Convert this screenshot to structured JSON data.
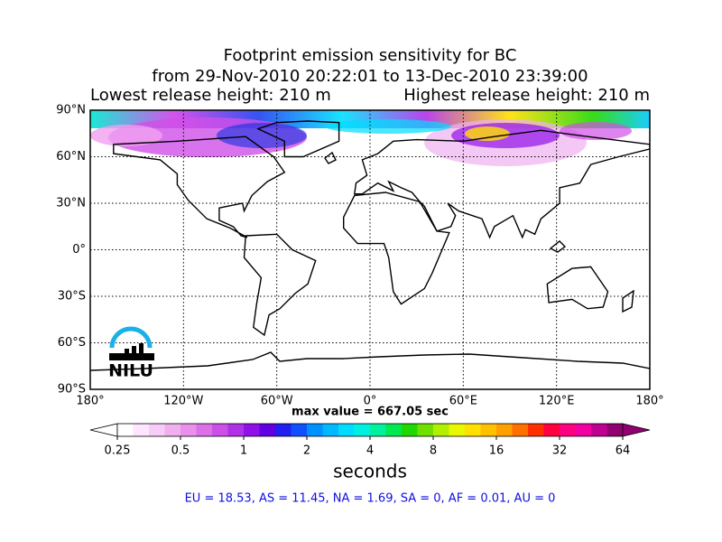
{
  "title": {
    "line1": "Footprint emission sensitivity for BC",
    "line2": "from 29-Nov-2010 20:22:01 to 13-Dec-2010 23:39:00",
    "lowest": "Lowest release height: 210 m",
    "highest": "Highest release height: 210 m"
  },
  "map": {
    "lat_ticks": [
      {
        "value": 90,
        "label": "90°N"
      },
      {
        "value": 60,
        "label": "60°N"
      },
      {
        "value": 30,
        "label": "30°N"
      },
      {
        "value": 0,
        "label": "0°"
      },
      {
        "value": -30,
        "label": "30°S"
      },
      {
        "value": -60,
        "label": "60°S"
      },
      {
        "value": -90,
        "label": "90°S"
      }
    ],
    "lon_ticks": [
      {
        "value": -180,
        "label": "180°"
      },
      {
        "value": -120,
        "label": "120°W"
      },
      {
        "value": -60,
        "label": "60°W"
      },
      {
        "value": 0,
        "label": "0°"
      },
      {
        "value": 60,
        "label": "60°E"
      },
      {
        "value": 120,
        "label": "120°E"
      },
      {
        "value": 180,
        "label": "180°"
      }
    ],
    "logo": "NILU",
    "max_value": "max value = 667.05 sec"
  },
  "colorbar": {
    "ticks": [
      0.25,
      0.5,
      1,
      2,
      4,
      8,
      16,
      32,
      64
    ],
    "lim": [
      0.25,
      64
    ],
    "log_scale": true,
    "label": "seconds",
    "colors": [
      "#ffffff",
      "#ffe6ff",
      "#f8ccf8",
      "#f0b0f0",
      "#e890ec",
      "#dc70e8",
      "#cc50e8",
      "#b030e8",
      "#9010e8",
      "#6000e0",
      "#2020f0",
      "#1050ff",
      "#0090ff",
      "#00b8ff",
      "#00dcff",
      "#00f0e0",
      "#00f0a0",
      "#00e850",
      "#20d800",
      "#70e000",
      "#b0f000",
      "#e8f800",
      "#ffe000",
      "#ffc000",
      "#ffa000",
      "#ff7000",
      "#ff3000",
      "#ff0040",
      "#ff0080",
      "#f000a0",
      "#c00090",
      "#900070"
    ]
  },
  "region_summary": "EU = 18.53,  AS = 11.45,  NA = 1.69,  SA = 0,  AF = 0.01,  AU = 0"
}
